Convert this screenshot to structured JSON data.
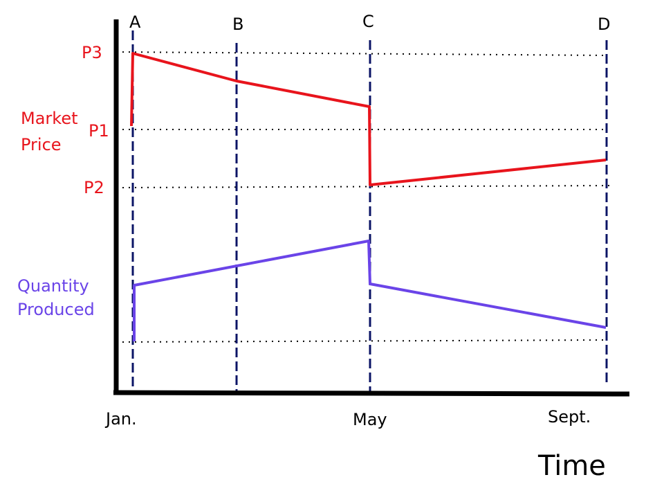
{
  "colors": {
    "price": "#e8141c",
    "quantity": "#6a44e8",
    "axis": "#000000",
    "event_lines": "#0b1466",
    "text": "#000000"
  },
  "event_labels": {
    "a": "A",
    "b": "B",
    "c": "C",
    "d": "D"
  },
  "price_levels": {
    "p3": "P3",
    "p1": "P1",
    "p2": "P2"
  },
  "series_labels": {
    "market_price": [
      "Market",
      "Price"
    ],
    "quantity_produced": [
      "Quantity",
      "Produced"
    ]
  },
  "time_labels": {
    "jan": "Jan.",
    "may": "May",
    "sept": "Sept."
  },
  "axis_title": "Time"
}
